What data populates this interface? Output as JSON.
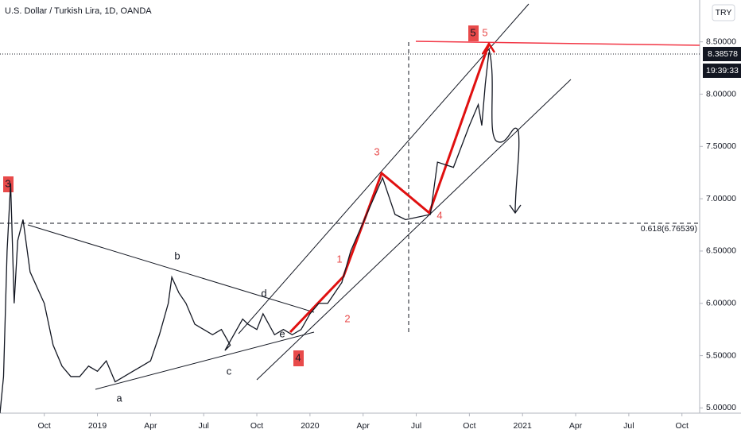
{
  "chart_data": {
    "type": "line",
    "title": "U.S. Dollar / Turkish Lira, 1D, OANDA",
    "currency_button": "TRY",
    "last_price_label": "8.38578",
    "countdown_label": "19:39:33",
    "fib_label": "0.618(6.76539)",
    "color": "#131722",
    "x": [
      -5.5,
      -5.3,
      -5.1,
      -4.9,
      -4.7,
      -4.5,
      -4.2,
      -3.8,
      -3,
      -2.5,
      -2,
      -1.5,
      -1,
      -0.5,
      0,
      0.5,
      1,
      1.5,
      2,
      2.5,
      3,
      3.5,
      4,
      4.2,
      4.6,
      5,
      5.5,
      6,
      6.5,
      7,
      7.5,
      7.2,
      8.2,
      8.5,
      9,
      9.35,
      10,
      10.5,
      11,
      11.5,
      12,
      12.5,
      13,
      13.8,
      14.3,
      15.2,
      16.1,
      16.8,
      17.4,
      18.8,
      19.2,
      20.1,
      21.0,
      21.5,
      21.7,
      21.9,
      22.1
    ],
    "values": [
      4.95,
      5.3,
      6.5,
      7.15,
      6.0,
      6.6,
      6.8,
      6.3,
      6.0,
      5.6,
      5.4,
      5.3,
      5.3,
      5.4,
      5.35,
      5.45,
      5.25,
      5.3,
      5.35,
      5.4,
      5.45,
      5.7,
      6.0,
      6.25,
      6.1,
      6.0,
      5.8,
      5.75,
      5.7,
      5.75,
      5.6,
      5.55,
      5.85,
      5.8,
      5.75,
      5.9,
      5.7,
      5.75,
      5.7,
      5.75,
      5.9,
      6.0,
      6.0,
      6.2,
      6.5,
      6.85,
      7.2,
      6.85,
      6.8,
      6.85,
      7.35,
      7.3,
      7.7,
      7.9,
      7.7,
      8.1,
      8.4
    ],
    "xlim": [
      -5.5,
      34
    ],
    "xticks": [
      {
        "value": -3,
        "label": "Oct"
      },
      {
        "value": 0,
        "label": "2019"
      },
      {
        "value": 3,
        "label": "Apr"
      },
      {
        "value": 6,
        "label": "Jul"
      },
      {
        "value": 9,
        "label": "Oct"
      },
      {
        "value": 12,
        "label": "2020"
      },
      {
        "value": 15,
        "label": "Apr"
      },
      {
        "value": 18,
        "label": "Jul"
      },
      {
        "value": 21,
        "label": "Oct"
      },
      {
        "value": 24,
        "label": "2021"
      },
      {
        "value": 27,
        "label": "Apr"
      },
      {
        "value": 30,
        "label": "Jul"
      },
      {
        "value": 33,
        "label": "Oct"
      }
    ],
    "ylim": [
      4.95,
      8.9
    ],
    "yticks": [
      {
        "value": 5,
        "label": "5.00000"
      },
      {
        "value": 5.5,
        "label": "5.50000"
      },
      {
        "value": 6,
        "label": "6.00000"
      },
      {
        "value": 6.5,
        "label": "6.50000"
      },
      {
        "value": 7,
        "label": "7.00000"
      },
      {
        "value": 7.5,
        "label": "7.50000"
      },
      {
        "value": 8,
        "label": "8.00000"
      },
      {
        "value": 8.5,
        "label": "8.50000"
      }
    ],
    "annotations": [
      "a",
      "b",
      "c",
      "d",
      "e",
      "1",
      "2",
      "3",
      "4",
      "5",
      "3",
      "4",
      "5"
    ]
  }
}
